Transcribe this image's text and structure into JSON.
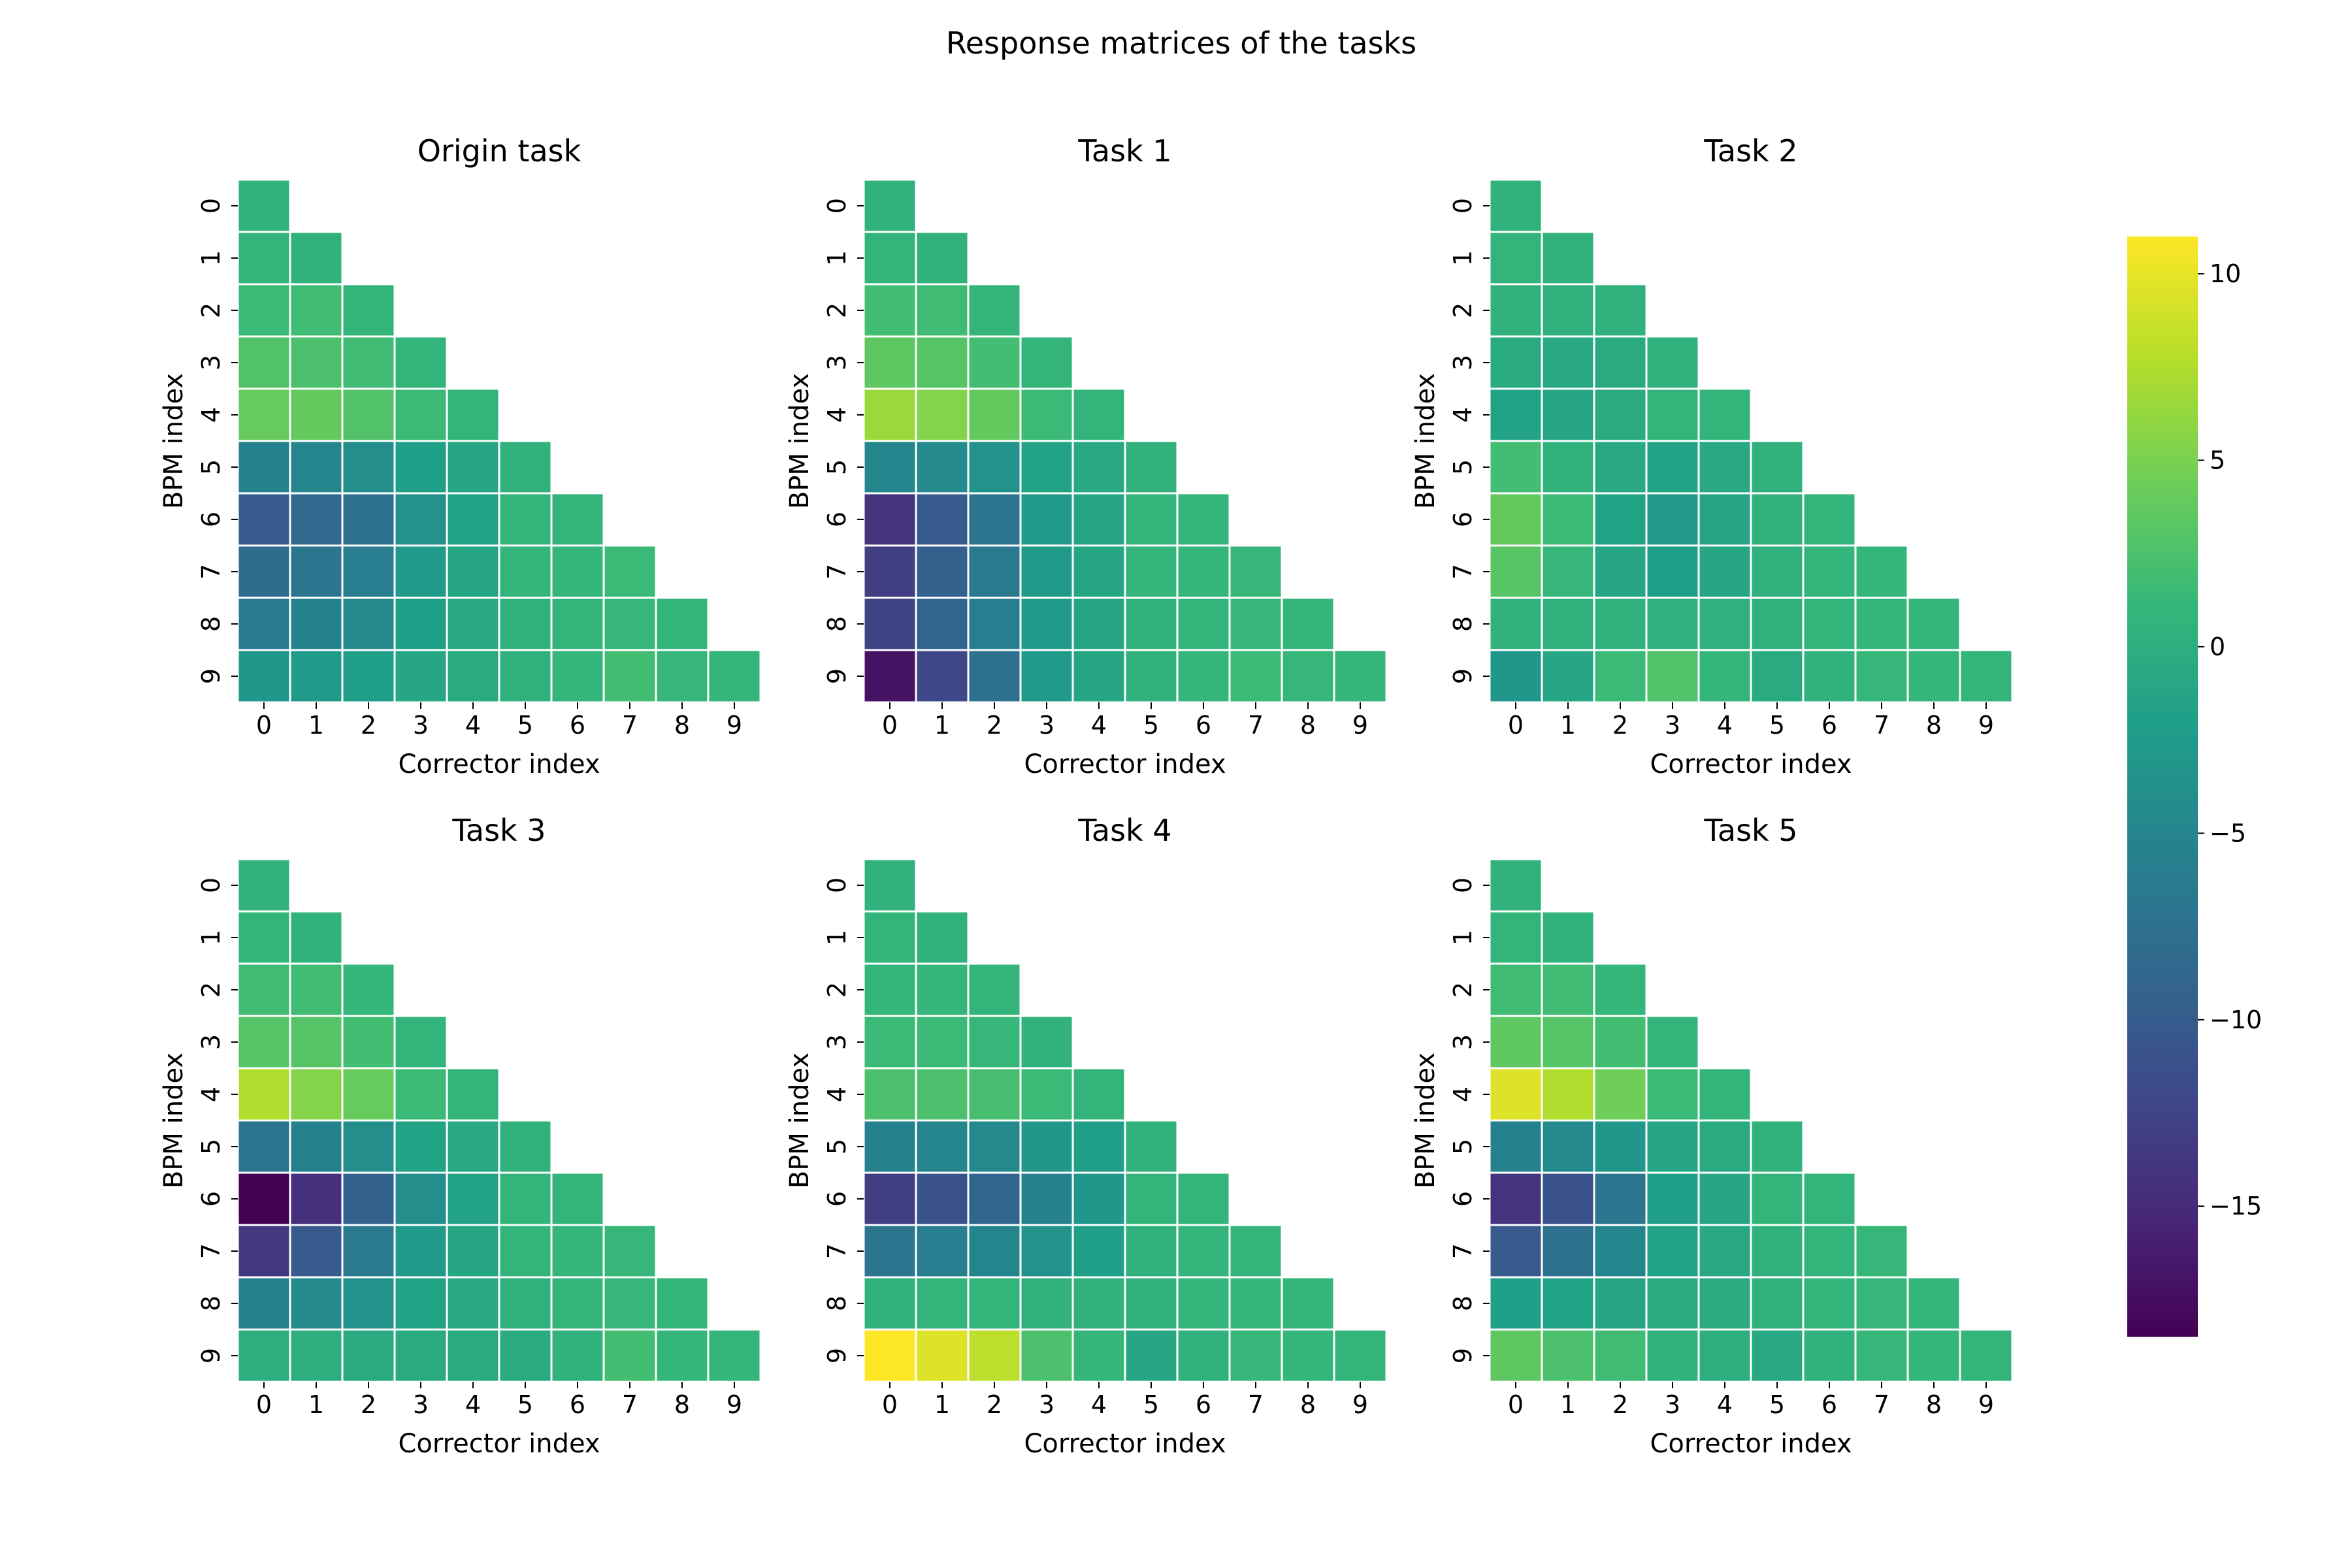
{
  "figure": {
    "title": "Response matrices of the tasks"
  },
  "colormap": {
    "name": "viridis",
    "stops": [
      "#440154",
      "#482878",
      "#3e4989",
      "#31688e",
      "#26828e",
      "#1f9e89",
      "#35b779",
      "#6ece58",
      "#b5de2b",
      "#fde725"
    ],
    "grid_color": "#ffffff"
  },
  "chart_data": [
    {
      "type": "heatmap",
      "title": "Origin task",
      "xlabel": "Corrector index",
      "ylabel": "BPM index",
      "x_tick_labels": [
        "0",
        "1",
        "2",
        "3",
        "4",
        "5",
        "6",
        "7",
        "8",
        "9"
      ],
      "y_tick_labels": [
        "0",
        "1",
        "2",
        "3",
        "4",
        "5",
        "6",
        "7",
        "8",
        "9"
      ],
      "mask": "upper triangle (column > row) blank",
      "values": [
        [
          0.5
        ],
        [
          0.8,
          0.5
        ],
        [
          1.5,
          1.8,
          1.0
        ],
        [
          2.8,
          2.5,
          1.8,
          0.8
        ],
        [
          4.0,
          3.8,
          2.8,
          1.5,
          0.8
        ],
        [
          -5.5,
          -5.0,
          -4.0,
          -2.0,
          -1.0,
          0.5
        ],
        [
          -10.0,
          -8.5,
          -7.5,
          -3.5,
          -1.5,
          0.8,
          0.8
        ],
        [
          -8.0,
          -7.0,
          -6.0,
          -2.5,
          -1.0,
          0.8,
          1.0,
          1.5
        ],
        [
          -6.5,
          -5.5,
          -4.5,
          -2.0,
          -0.8,
          0.5,
          0.8,
          1.2,
          0.8
        ],
        [
          -3.0,
          -2.5,
          -2.0,
          -1.0,
          -0.5,
          0.3,
          1.0,
          2.0,
          1.2,
          1.0
        ]
      ]
    },
    {
      "type": "heatmap",
      "title": "Task 1",
      "xlabel": "Corrector index",
      "ylabel": "BPM index",
      "x_tick_labels": [
        "0",
        "1",
        "2",
        "3",
        "4",
        "5",
        "6",
        "7",
        "8",
        "9"
      ],
      "y_tick_labels": [
        "0",
        "1",
        "2",
        "3",
        "4",
        "5",
        "6",
        "7",
        "8",
        "9"
      ],
      "mask": "upper triangle (column > row) blank",
      "values": [
        [
          0.5
        ],
        [
          0.8,
          0.5
        ],
        [
          2.0,
          1.8,
          1.0
        ],
        [
          3.5,
          3.0,
          2.0,
          0.8
        ],
        [
          6.5,
          5.5,
          3.8,
          1.5,
          0.8
        ],
        [
          -5.0,
          -4.5,
          -3.5,
          -1.5,
          -0.8,
          0.5
        ],
        [
          -14.0,
          -10.0,
          -7.0,
          -2.5,
          -1.0,
          0.8,
          1.0
        ],
        [
          -13.0,
          -9.5,
          -6.5,
          -2.5,
          -1.0,
          0.8,
          1.0,
          1.2
        ],
        [
          -12.5,
          -9.0,
          -6.0,
          -2.5,
          -1.0,
          0.5,
          0.8,
          1.2,
          1.0
        ],
        [
          -17.0,
          -12.0,
          -7.5,
          -2.5,
          -1.0,
          0.5,
          1.0,
          1.5,
          1.2,
          1.0
        ]
      ]
    },
    {
      "type": "heatmap",
      "title": "Task 2",
      "xlabel": "Corrector index",
      "ylabel": "BPM index",
      "x_tick_labels": [
        "0",
        "1",
        "2",
        "3",
        "4",
        "5",
        "6",
        "7",
        "8",
        "9"
      ],
      "y_tick_labels": [
        "0",
        "1",
        "2",
        "3",
        "4",
        "5",
        "6",
        "7",
        "8",
        "9"
      ],
      "mask": "upper triangle (column > row) blank",
      "values": [
        [
          0.5
        ],
        [
          0.8,
          0.5
        ],
        [
          0.5,
          0.3,
          0.3
        ],
        [
          -0.5,
          -0.8,
          -0.5,
          0.3
        ],
        [
          -1.5,
          -1.2,
          -0.5,
          0.8,
          0.8
        ],
        [
          2.0,
          0.5,
          -0.8,
          -1.5,
          -0.8,
          0.5
        ],
        [
          3.8,
          1.5,
          -1.5,
          -2.8,
          -1.2,
          0.5,
          0.8
        ],
        [
          3.2,
          1.2,
          -1.0,
          -2.0,
          -1.0,
          0.3,
          0.8,
          1.0
        ],
        [
          0.5,
          0.3,
          0.3,
          0.2,
          0.2,
          0.3,
          0.8,
          1.0,
          1.0
        ],
        [
          -3.0,
          -1.0,
          1.5,
          2.8,
          1.0,
          -0.5,
          0.5,
          1.2,
          1.0,
          0.8
        ]
      ]
    },
    {
      "type": "heatmap",
      "title": "Task 3",
      "xlabel": "Corrector index",
      "ylabel": "BPM index",
      "x_tick_labels": [
        "0",
        "1",
        "2",
        "3",
        "4",
        "5",
        "6",
        "7",
        "8",
        "9"
      ],
      "y_tick_labels": [
        "0",
        "1",
        "2",
        "3",
        "4",
        "5",
        "6",
        "7",
        "8",
        "9"
      ],
      "mask": "upper triangle (column > row) blank",
      "values": [
        [
          0.5
        ],
        [
          0.8,
          0.5
        ],
        [
          1.8,
          1.8,
          1.0
        ],
        [
          3.0,
          3.0,
          2.0,
          0.8
        ],
        [
          7.5,
          5.5,
          4.0,
          1.5,
          0.8
        ],
        [
          -7.0,
          -5.5,
          -4.0,
          -1.5,
          -0.8,
          0.5
        ],
        [
          -18.5,
          -14.5,
          -9.5,
          -4.0,
          -1.5,
          0.8,
          0.8
        ],
        [
          -13.5,
          -10.0,
          -6.5,
          -2.5,
          -1.0,
          0.8,
          1.0,
          1.2
        ],
        [
          -5.5,
          -4.5,
          -3.5,
          -1.5,
          -0.8,
          0.3,
          0.8,
          1.2,
          1.0
        ],
        [
          0.0,
          0.0,
          -0.5,
          -0.5,
          -0.5,
          -0.5,
          0.5,
          2.0,
          1.0,
          1.0
        ]
      ]
    },
    {
      "type": "heatmap",
      "title": "Task 4",
      "xlabel": "Corrector index",
      "ylabel": "BPM index",
      "x_tick_labels": [
        "0",
        "1",
        "2",
        "3",
        "4",
        "5",
        "6",
        "7",
        "8",
        "9"
      ],
      "y_tick_labels": [
        "0",
        "1",
        "2",
        "3",
        "4",
        "5",
        "6",
        "7",
        "8",
        "9"
      ],
      "mask": "upper triangle (column > row) blank",
      "values": [
        [
          0.5
        ],
        [
          0.8,
          0.5
        ],
        [
          1.0,
          1.0,
          0.8
        ],
        [
          1.5,
          1.5,
          1.2,
          0.5
        ],
        [
          2.5,
          2.5,
          2.2,
          1.5,
          0.8
        ],
        [
          -5.5,
          -5.0,
          -4.5,
          -3.0,
          -2.0,
          0.5
        ],
        [
          -13.0,
          -11.0,
          -9.0,
          -5.5,
          -3.0,
          0.8,
          0.8
        ],
        [
          -7.0,
          -6.0,
          -5.0,
          -3.5,
          -2.0,
          0.5,
          0.8,
          1.0
        ],
        [
          0.5,
          0.8,
          0.8,
          0.5,
          0.5,
          0.5,
          0.8,
          1.0,
          1.0
        ],
        [
          11.0,
          9.5,
          8.0,
          2.5,
          1.0,
          -1.0,
          0.5,
          1.2,
          1.0,
          0.8
        ]
      ]
    },
    {
      "type": "heatmap",
      "title": "Task 5",
      "xlabel": "Corrector index",
      "ylabel": "BPM index",
      "x_tick_labels": [
        "0",
        "1",
        "2",
        "3",
        "4",
        "5",
        "6",
        "7",
        "8",
        "9"
      ],
      "y_tick_labels": [
        "0",
        "1",
        "2",
        "3",
        "4",
        "5",
        "6",
        "7",
        "8",
        "9"
      ],
      "mask": "upper triangle (column > row) blank",
      "values": [
        [
          0.5
        ],
        [
          0.8,
          0.5
        ],
        [
          1.8,
          1.8,
          1.0
        ],
        [
          3.5,
          3.0,
          2.0,
          0.8
        ],
        [
          9.5,
          7.5,
          4.5,
          1.5,
          0.8
        ],
        [
          -5.5,
          -4.5,
          -3.0,
          -1.0,
          -0.5,
          0.5
        ],
        [
          -14.0,
          -11.0,
          -7.0,
          -2.0,
          -1.0,
          0.8,
          0.8
        ],
        [
          -10.0,
          -7.5,
          -5.0,
          -1.5,
          -0.8,
          0.5,
          0.8,
          1.2
        ],
        [
          -2.0,
          -1.5,
          -1.0,
          -0.5,
          -0.3,
          0.3,
          0.8,
          1.2,
          1.0
        ],
        [
          3.5,
          2.5,
          1.8,
          0.5,
          0.0,
          -0.8,
          0.5,
          1.2,
          1.0,
          0.8
        ]
      ]
    }
  ],
  "colorbar": {
    "vmin": -18.5,
    "vmax": 11.0,
    "tick_values": [
      10,
      5,
      0,
      -5,
      -10,
      -15
    ],
    "tick_labels": [
      "10",
      "5",
      "0",
      "−5",
      "−10",
      "−15"
    ]
  }
}
